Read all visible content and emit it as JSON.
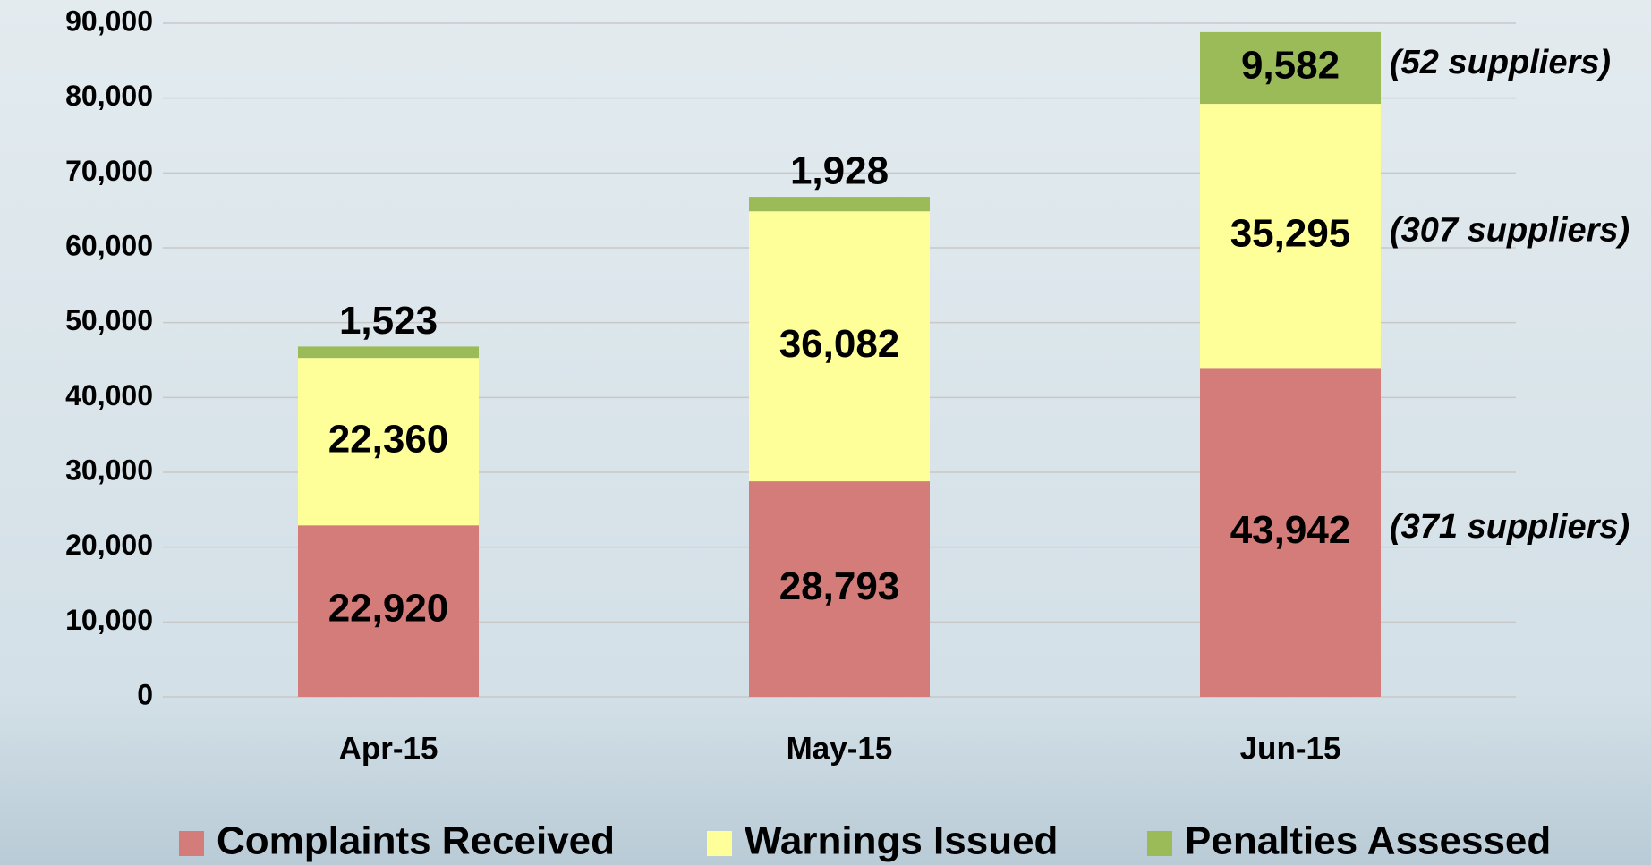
{
  "chart_data": {
    "type": "stacked_bar",
    "categories": [
      "Apr-15",
      "May-15",
      "Jun-15"
    ],
    "series": [
      {
        "name": "Complaints Received",
        "color": "#d47c7a",
        "values": [
          22920,
          28793,
          43942
        ],
        "value_labels": [
          "22,920",
          "28,793",
          "43,942"
        ]
      },
      {
        "name": "Warnings Issued",
        "color": "#ffff99",
        "values": [
          22360,
          36082,
          35295
        ],
        "value_labels": [
          "22,360",
          "36,082",
          "35,295"
        ]
      },
      {
        "name": "Penalties Assessed",
        "color": "#9bbb59",
        "values": [
          1523,
          1928,
          9582
        ],
        "value_labels": [
          "1,523",
          "1,928",
          "9,582"
        ]
      }
    ],
    "annotations": [
      "(371 suppliers)",
      "(307 suppliers)",
      "(52 suppliers)"
    ],
    "ylim": [
      0,
      90000
    ],
    "yticks": [
      0,
      {
        "value": 10000,
        "label": "10,000"
      },
      {
        "value": 20000,
        "label": "20,000"
      },
      {
        "value": 30000,
        "label": "30,000"
      },
      {
        "value": 40000,
        "label": "40,000"
      },
      {
        "value": 50000,
        "label": "50,000"
      },
      {
        "value": 60000,
        "label": "60,000"
      },
      {
        "value": 70000,
        "label": "70,000"
      },
      {
        "value": 80000,
        "label": "80,000"
      },
      {
        "value": 90000,
        "label": "90,000"
      }
    ],
    "grid": true,
    "legend": "bottom"
  }
}
